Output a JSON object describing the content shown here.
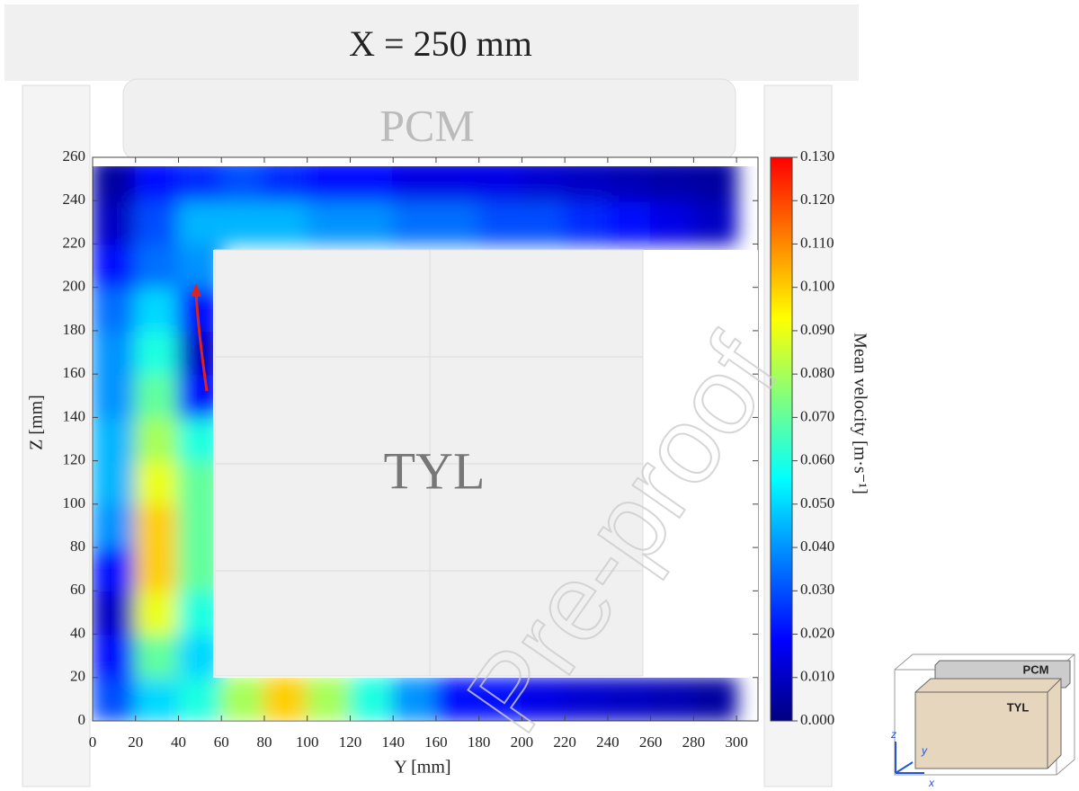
{
  "chart_data": {
    "type": "heatmap",
    "title": "X = 250 mm",
    "x_label": "Y [mm]",
    "y_label": "Z [mm]",
    "annotations": [
      "PCM",
      "TYL"
    ],
    "watermark": "Pre-proof",
    "x": [
      10,
      30,
      50,
      70,
      90,
      110,
      130,
      150,
      170,
      190,
      210,
      230,
      250,
      270,
      290
    ],
    "y": [
      10,
      30,
      50,
      70,
      90,
      110,
      130,
      150,
      170,
      190,
      210,
      230,
      250
    ],
    "values": [
      [
        0.03,
        0.05,
        0.06,
        0.08,
        0.1,
        0.08,
        0.06,
        0.04,
        0.02,
        0.02,
        0.015,
        0.012,
        0.01,
        0.008,
        0.005
      ],
      [
        0.02,
        0.07,
        0.05,
        null,
        null,
        null,
        null,
        null,
        null,
        null,
        null,
        null,
        null,
        null,
        null
      ],
      [
        0.01,
        0.09,
        0.06,
        null,
        null,
        null,
        null,
        null,
        null,
        null,
        null,
        null,
        null,
        null,
        null
      ],
      [
        0.02,
        0.1,
        0.07,
        null,
        null,
        null,
        null,
        null,
        null,
        null,
        null,
        null,
        null,
        null,
        null
      ],
      [
        0.04,
        0.1,
        0.07,
        null,
        null,
        null,
        null,
        null,
        null,
        null,
        null,
        null,
        null,
        null,
        null
      ],
      [
        0.045,
        0.09,
        0.07,
        null,
        null,
        null,
        null,
        null,
        null,
        null,
        null,
        null,
        null,
        null,
        null
      ],
      [
        0.045,
        0.08,
        0.06,
        null,
        null,
        null,
        null,
        null,
        null,
        null,
        null,
        null,
        null,
        null,
        null
      ],
      [
        0.04,
        0.07,
        0.02,
        null,
        null,
        null,
        null,
        null,
        null,
        null,
        null,
        null,
        null,
        null,
        null
      ],
      [
        0.04,
        0.06,
        0.01,
        null,
        null,
        null,
        null,
        null,
        null,
        null,
        null,
        null,
        null,
        null,
        null
      ],
      [
        0.035,
        0.05,
        0.02,
        null,
        null,
        null,
        null,
        null,
        null,
        null,
        null,
        null,
        null,
        null,
        null
      ],
      [
        0.02,
        0.035,
        0.04,
        null,
        null,
        null,
        null,
        null,
        null,
        null,
        null,
        null,
        null,
        null,
        null
      ],
      [
        0.01,
        0.03,
        0.045,
        0.045,
        0.045,
        0.04,
        0.04,
        0.035,
        0.035,
        0.03,
        0.03,
        0.025,
        0.02,
        0.015,
        0.01
      ],
      [
        0.005,
        0.02,
        0.025,
        0.03,
        0.025,
        0.02,
        0.02,
        0.015,
        0.015,
        0.015,
        0.012,
        0.01,
        0.008,
        0.006,
        0.005
      ]
    ],
    "xlim": [
      0,
      310
    ],
    "ylim": [
      0,
      260
    ],
    "xticks": [
      0,
      20,
      40,
      60,
      80,
      100,
      120,
      140,
      160,
      180,
      200,
      220,
      240,
      260,
      280,
      300
    ],
    "yticks": [
      0,
      20,
      40,
      60,
      80,
      100,
      120,
      140,
      160,
      180,
      200,
      220,
      240,
      260
    ],
    "colorbar": {
      "label": "Mean velocity [m·s⁻¹]",
      "lim": [
        0,
        0.13
      ],
      "colors": [
        "#00007f",
        "#0000ff",
        "#007fff",
        "#00ffff",
        "#7fff7f",
        "#ffff00",
        "#ff7f00",
        "#ff0000"
      ],
      "ticks": [
        {
          "value": 0,
          "label": "0.000"
        },
        {
          "value": 0.01,
          "label": "0.010"
        },
        {
          "value": 0.02,
          "label": "0.020"
        },
        {
          "value": 0.03,
          "label": "0.030"
        },
        {
          "value": 0.04,
          "label": "0.040"
        },
        {
          "value": 0.05,
          "label": "0.050"
        },
        {
          "value": 0.06,
          "label": "0.060"
        },
        {
          "value": 0.07,
          "label": "0.070"
        },
        {
          "value": 0.08,
          "label": "0.080"
        },
        {
          "value": 0.09,
          "label": "0.090"
        },
        {
          "value": 0.1,
          "label": "0.100"
        },
        {
          "value": 0.11,
          "label": "0.110"
        },
        {
          "value": 0.12,
          "label": "0.120"
        },
        {
          "value": 0.13,
          "label": "0.130"
        }
      ]
    },
    "inset_labels": [
      "PCM",
      "TYL",
      "z",
      "y",
      "x"
    ]
  }
}
